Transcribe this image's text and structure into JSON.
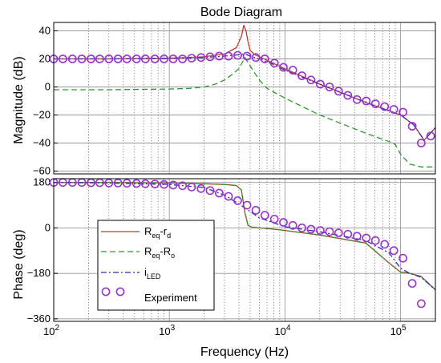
{
  "chart_data": {
    "type": "line",
    "title": "Bode Diagram",
    "xlabel": "Frequency  (Hz)",
    "xscale": "log",
    "xlim": [
      100,
      200000
    ],
    "x_ticks": [
      {
        "base": "10",
        "exp": "2",
        "v": 100
      },
      {
        "base": "10",
        "exp": "3",
        "v": 1000
      },
      {
        "base": "10",
        "exp": "4",
        "v": 10000
      },
      {
        "base": "10",
        "exp": "5",
        "v": 100000
      }
    ],
    "grid": true,
    "colors": {
      "red": "#c0392b",
      "green": "#2e9a2e",
      "blue": "#2b2bb8",
      "purple": "#9933cc"
    },
    "panels": [
      {
        "id": "magnitude",
        "ylabel": "Magnitude (dB)",
        "ylim": [
          -62,
          46
        ],
        "yticks": [
          40,
          20,
          0,
          -20,
          -40,
          -60
        ],
        "series": [
          {
            "key": "red",
            "x": [
              100,
              300,
              1000,
              2000,
              3000,
              3800,
              4200,
              4400,
              4600,
              4800,
              5000,
              5500,
              7000,
              10000,
              20000,
              50000,
              100000,
              130000,
              160000,
              200000
            ],
            "y": [
              20,
              20,
              20.5,
              21.5,
              23.5,
              28,
              36,
              44,
              40,
              32,
              26,
              23,
              19,
              13,
              2,
              -11,
              -20,
              -27,
              -38,
              -29
            ]
          },
          {
            "key": "green",
            "x": [
              100,
              300,
              1000,
              1500,
              2000,
              2500,
              3000,
              3500,
              4000,
              4500,
              5000,
              6000,
              7000,
              10000,
              20000,
              50000,
              80000,
              90000,
              100000,
              120000,
              150000,
              200000
            ],
            "y": [
              -2,
              -2,
              -1.5,
              -1,
              0,
              2,
              5,
              9,
              13,
              21,
              15,
              5,
              -1,
              -8,
              -20,
              -33,
              -39,
              -41,
              -48,
              -55,
              -57,
              -57
            ]
          },
          {
            "key": "blue",
            "x": [
              100,
              300,
              1000,
              2000,
              3000,
              4000,
              4500,
              5000,
              6000,
              8000,
              10000,
              20000,
              50000,
              100000,
              130000,
              160000,
              200000
            ],
            "y": [
              20,
              20,
              20.5,
              21,
              22,
              23,
              23.5,
              22,
              20,
              16,
              12,
              2,
              -11,
              -20,
              -27,
              -38,
              -29
            ]
          }
        ],
        "experiment": {
          "x": [
            100,
            120,
            145,
            175,
            210,
            250,
            300,
            360,
            430,
            520,
            620,
            750,
            900,
            1080,
            1300,
            1560,
            1880,
            2250,
            2700,
            3250,
            3900,
            4700,
            5600,
            6700,
            8100,
            9700,
            11700,
            14000,
            16800,
            20200,
            24300,
            29100,
            35000,
            42000,
            50500,
            60600,
            72800,
            87400,
            105000,
            126000,
            151000,
            182000
          ],
          "y": [
            20,
            20,
            20,
            20,
            20,
            20,
            20,
            20,
            20,
            20,
            20,
            20,
            20,
            20,
            20,
            20.5,
            21,
            21.5,
            22,
            22,
            22.5,
            22,
            21,
            20,
            17,
            14,
            12,
            8,
            5,
            2,
            0,
            -3,
            -6,
            -9,
            -10,
            -12,
            -14,
            -16,
            -18,
            -28,
            -40,
            -35
          ]
        }
      },
      {
        "id": "phase",
        "ylabel": "Phase (deg)",
        "ylim": [
          -370,
          195
        ],
        "yticks": [
          180,
          0,
          -180,
          -360
        ],
        "series": [
          {
            "key": "red",
            "x": [
              100,
              300,
              1000,
              2000,
              3000,
              3800,
              4200,
              4500,
              4800,
              5200,
              6000,
              8000,
              10000,
              20000,
              50000,
              80000,
              100000,
              120000,
              150000,
              200000
            ],
            "y": [
              180,
              180,
              178,
              175,
              172,
              168,
              150,
              60,
              10,
              3,
              0,
              -5,
              -10,
              -28,
              -60,
              -140,
              -175,
              -180,
              -192,
              -245
            ]
          },
          {
            "key": "green",
            "x": [
              100,
              300,
              1000,
              2000,
              3000,
              3800,
              4200,
              4500,
              4800,
              5200,
              6000,
              8000,
              10000,
              20000,
              50000,
              80000,
              100000,
              120000,
              150000,
              200000
            ],
            "y": [
              180,
              180,
              178,
              175,
              172,
              168,
              150,
              60,
              10,
              3,
              0,
              -5,
              -10,
              -28,
              -60,
              -140,
              -175,
              -180,
              -192,
              -245
            ]
          },
          {
            "key": "blue",
            "x": [
              100,
              300,
              1000,
              2000,
              3000,
              4000,
              5000,
              6000,
              8000,
              10000,
              20000,
              50000,
              80000,
              100000,
              120000,
              150000,
              200000
            ],
            "y": [
              180,
              178,
              172,
              160,
              130,
              95,
              65,
              40,
              20,
              5,
              -15,
              -50,
              -100,
              -160,
              -180,
              -195,
              -245
            ]
          }
        ],
        "experiment": {
          "x": [
            100,
            120,
            145,
            175,
            210,
            250,
            300,
            360,
            430,
            520,
            620,
            750,
            900,
            1080,
            1300,
            1560,
            1880,
            2250,
            2700,
            3250,
            3900,
            4700,
            5600,
            6700,
            8100,
            9700,
            11700,
            14000,
            16800,
            20200,
            24300,
            29100,
            35000,
            42000,
            50500,
            60600,
            72800,
            87400,
            105000,
            126000,
            151000
          ],
          "y": [
            180,
            180,
            180,
            180,
            179,
            179,
            178,
            178,
            177,
            176,
            175,
            174,
            172,
            170,
            167,
            162,
            156,
            148,
            138,
            125,
            108,
            90,
            70,
            50,
            35,
            22,
            10,
            0,
            -5,
            -10,
            -15,
            -20,
            -25,
            -33,
            -40,
            -50,
            -65,
            -90,
            -120,
            -220,
            -300
          ]
        }
      }
    ],
    "legend": {
      "placement": "lower-left of phase panel",
      "entries": [
        {
          "key": "red",
          "main": "R",
          "sub1": "eq",
          "mid": "-r",
          "sub2": "d",
          "style": "solid"
        },
        {
          "key": "green",
          "main": "R",
          "sub1": "eq",
          "mid": "-R",
          "sub2": "o",
          "style": "dashed"
        },
        {
          "key": "blue",
          "main": "i",
          "sub1": "LED",
          "mid": "",
          "sub2": "",
          "style": "dashdot"
        },
        {
          "key": "purple",
          "main": "Experiment",
          "sub1": "",
          "mid": "",
          "sub2": "",
          "style": "marker"
        }
      ]
    }
  }
}
